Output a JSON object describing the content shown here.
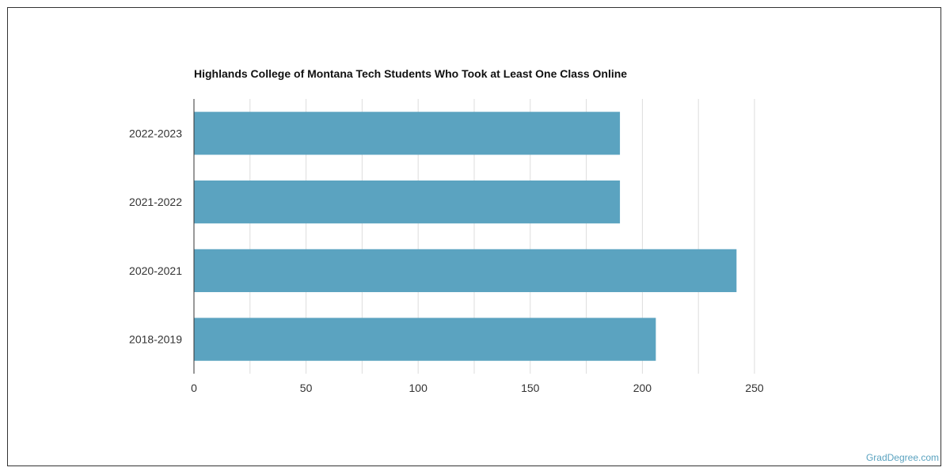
{
  "chart_data": {
    "type": "bar",
    "orientation": "horizontal",
    "title": "Highlands College of Montana Tech Students Who Took at Least One Class Online",
    "categories": [
      "2022-2023",
      "2021-2022",
      "2020-2021",
      "2018-2019"
    ],
    "values": [
      190,
      190,
      242,
      206
    ],
    "xlim": [
      0,
      250
    ],
    "x_ticks": [
      0,
      50,
      100,
      150,
      200,
      250
    ],
    "grid": true,
    "bar_color": "#5ba3c0",
    "xlabel": "",
    "ylabel": ""
  },
  "footer": {
    "credit": "GradDegree.com"
  },
  "colors": {
    "accent": "#5ba3c0",
    "grid": "#dddddd",
    "axis": "#333333"
  }
}
